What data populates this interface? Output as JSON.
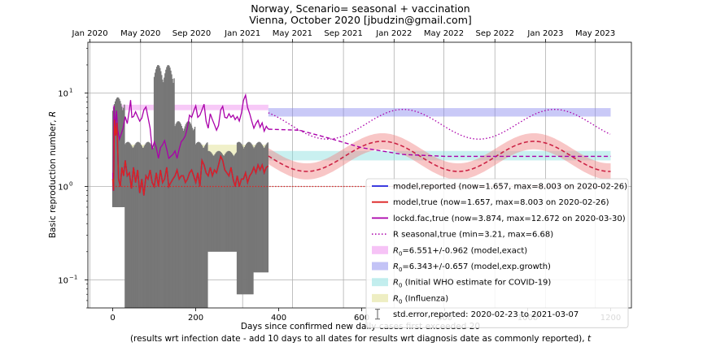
{
  "chart_data": {
    "type": "line",
    "title": "Norway, Scenario= seasonal + vaccination",
    "subtitle": "Vienna, October 2020 [jbudzin@gmail.com]",
    "xlabel_line1": "Days since confirmed new daily cases first exceeded 20",
    "xlabel_line2": "(results wrt infection date - add 10 days to all dates for results wrt diagnosis date as commonly reported),",
    "xlabel_var": "t",
    "ylabel": "Basic reproduction number,",
    "ylabel_var": "R",
    "x_scale": "linear",
    "y_scale": "log",
    "xlim": [
      -60,
      1250
    ],
    "ylim": [
      0.05,
      35
    ],
    "x_ticks": [
      0,
      200,
      400,
      600,
      800,
      1000,
      1200
    ],
    "y_ticks": [
      {
        "value": 0.1,
        "label": "10",
        "sup": "−1"
      },
      {
        "value": 1,
        "label": "10",
        "sup": "0"
      },
      {
        "value": 10,
        "label": "10",
        "sup": "1"
      }
    ],
    "top_axis_dates": [
      {
        "label": "Jan 2020",
        "day": -55
      },
      {
        "label": "May 2020",
        "day": 67
      },
      {
        "label": "Sep 2020",
        "day": 190
      },
      {
        "label": "Jan 2021",
        "day": 313
      },
      {
        "label": "May 2021",
        "day": 433
      },
      {
        "label": "Sep 2021",
        "day": 556
      },
      {
        "label": "Jan 2022",
        "day": 678
      },
      {
        "label": "May 2022",
        "day": 798
      },
      {
        "label": "Sep 2022",
        "day": 921
      },
      {
        "label": "Jan 2023",
        "day": 1043
      },
      {
        "label": "May 2023",
        "day": 1163
      }
    ],
    "grid": true,
    "legend_position": "lower-right",
    "bands": [
      {
        "name": "R0=6.551+/-0.962 (model,exact)",
        "x": [
          0,
          375
        ],
        "y": [
          6.551,
          7.5
        ],
        "color": "#ee88ee"
      },
      {
        "name": "R0=6.343+/-0.657 (model,exp.growth)",
        "x": [
          375,
          1200
        ],
        "y": [
          5.6,
          6.9
        ],
        "color": "#8888ee"
      },
      {
        "name": "R0 (Initial WHO estimate for COVID-19)",
        "x": [
          375,
          1200
        ],
        "y": [
          1.9,
          2.4
        ],
        "color": "#88dddd"
      },
      {
        "name": "R0 (Influenza)",
        "x": [
          0,
          375
        ],
        "y": [
          1.5,
          2.8
        ],
        "color": "#dddd88"
      }
    ],
    "seasonal_curve": {
      "name": "R seasonal,true (min=3.21, max=6.68)",
      "min": 3.21,
      "max": 6.68,
      "x_range": [
        375,
        1200
      ],
      "peak_day": 700,
      "period": 365,
      "color": "#aa00aa"
    },
    "scenario_curve": {
      "center": 2.1,
      "amplitude": 0.7,
      "period": 365,
      "peak_day": 1015,
      "x_range": [
        375,
        1200
      ],
      "start_value": 1.6,
      "color": "#cc2244"
    },
    "lockdown_trend": {
      "x": [
        375,
        450,
        520,
        600,
        700,
        800,
        1200
      ],
      "y": [
        4.1,
        4.0,
        3.3,
        2.6,
        2.2,
        2.1,
        2.1
      ],
      "color": "#aa00aa"
    },
    "reference_line": {
      "y": 1.0,
      "x": [
        0,
        1200
      ],
      "color": "#dd2222"
    },
    "series": [
      {
        "name": "model,reported (now=1.657, max=8.003 on 2020-02-26)",
        "color": "#2222dd",
        "style": "solid"
      },
      {
        "name": "model,true (now=1.657, max=8.003 on 2020-02-26)",
        "color": "#dd2222",
        "style": "solid"
      },
      {
        "name": "lockd.fac,true (now=3.874, max=12.672 on 2020-03-30)",
        "color": "#aa00aa",
        "style": "solid"
      },
      {
        "name": "R seasonal,true (min=3.21, max=6.68)",
        "color": "#aa00aa",
        "style": "dotted"
      }
    ],
    "lockdown_points": [
      [
        0,
        1.4
      ],
      [
        1,
        0.9
      ],
      [
        3,
        7.3
      ],
      [
        6,
        4.2
      ],
      [
        9,
        6.5
      ],
      [
        12,
        4.0
      ],
      [
        16,
        3.2
      ],
      [
        20,
        3.6
      ],
      [
        25,
        4.2
      ],
      [
        30,
        5.6
      ],
      [
        35,
        4.7
      ],
      [
        40,
        6.6
      ],
      [
        43,
        8.4
      ],
      [
        46,
        5.5
      ],
      [
        50,
        5.6
      ],
      [
        55,
        6.3
      ],
      [
        60,
        5.6
      ],
      [
        65,
        5.0
      ],
      [
        70,
        5.4
      ],
      [
        75,
        6.6
      ],
      [
        80,
        7.1
      ],
      [
        85,
        5.5
      ],
      [
        90,
        4.2
      ],
      [
        95,
        2.5
      ],
      [
        100,
        3.0
      ],
      [
        105,
        2.6
      ],
      [
        110,
        2.0
      ],
      [
        115,
        2.6
      ],
      [
        120,
        2.8
      ],
      [
        125,
        3.1
      ],
      [
        130,
        2.5
      ],
      [
        135,
        2.0
      ],
      [
        140,
        2.1
      ],
      [
        145,
        2.2
      ],
      [
        150,
        2.4
      ],
      [
        155,
        2.0
      ],
      [
        160,
        2.5
      ],
      [
        165,
        3.0
      ],
      [
        170,
        3.2
      ],
      [
        175,
        3.5
      ],
      [
        180,
        4.3
      ],
      [
        185,
        5.8
      ],
      [
        190,
        5.5
      ],
      [
        195,
        6.4
      ],
      [
        200,
        7.3
      ],
      [
        205,
        5.5
      ],
      [
        210,
        5.8
      ],
      [
        215,
        6.6
      ],
      [
        220,
        7.6
      ],
      [
        225,
        5.0
      ],
      [
        230,
        4.2
      ],
      [
        235,
        6.0
      ],
      [
        240,
        5.2
      ],
      [
        245,
        4.6
      ],
      [
        250,
        4.0
      ],
      [
        255,
        4.5
      ],
      [
        260,
        6.6
      ],
      [
        265,
        7.2
      ],
      [
        270,
        5.5
      ],
      [
        275,
        5.4
      ],
      [
        280,
        6.0
      ],
      [
        285,
        5.5
      ],
      [
        290,
        5.8
      ],
      [
        295,
        5.2
      ],
      [
        300,
        5.6
      ],
      [
        305,
        5.0
      ],
      [
        310,
        6.1
      ],
      [
        315,
        8.3
      ],
      [
        320,
        9.5
      ],
      [
        325,
        7.0
      ],
      [
        330,
        6.0
      ],
      [
        335,
        5.0
      ],
      [
        340,
        4.2
      ],
      [
        345,
        4.7
      ],
      [
        350,
        5.1
      ],
      [
        355,
        4.3
      ],
      [
        360,
        4.8
      ],
      [
        365,
        3.9
      ],
      [
        370,
        4.4
      ],
      [
        375,
        4.1
      ]
    ],
    "model_points": [
      [
        0,
        1.2
      ],
      [
        2,
        0.9
      ],
      [
        4,
        5.2
      ],
      [
        7,
        3.5
      ],
      [
        10,
        4.8
      ],
      [
        14,
        1.2
      ],
      [
        18,
        1.0
      ],
      [
        22,
        1.6
      ],
      [
        26,
        1.3
      ],
      [
        30,
        1.9
      ],
      [
        35,
        1.3
      ],
      [
        40,
        1.4
      ],
      [
        45,
        0.95
      ],
      [
        50,
        1.6
      ],
      [
        55,
        1.1
      ],
      [
        60,
        1.5
      ],
      [
        65,
        0.85
      ],
      [
        70,
        1.2
      ],
      [
        75,
        0.8
      ],
      [
        80,
        1.3
      ],
      [
        85,
        1.2
      ],
      [
        90,
        1.5
      ],
      [
        95,
        1.1
      ],
      [
        100,
        1.0
      ],
      [
        105,
        1.4
      ],
      [
        110,
        1.0
      ],
      [
        115,
        1.5
      ],
      [
        120,
        1.1
      ],
      [
        125,
        1.2
      ],
      [
        130,
        1.6
      ],
      [
        135,
        1.0
      ],
      [
        140,
        1.1
      ],
      [
        145,
        1.2
      ],
      [
        150,
        1.3
      ],
      [
        155,
        1.5
      ],
      [
        160,
        1.2
      ],
      [
        165,
        1.3
      ],
      [
        170,
        1.3
      ],
      [
        175,
        1.1
      ],
      [
        180,
        1.2
      ],
      [
        185,
        1.4
      ],
      [
        190,
        1.5
      ],
      [
        195,
        1.3
      ],
      [
        200,
        1.1
      ],
      [
        205,
        1.4
      ],
      [
        210,
        1.0
      ],
      [
        215,
        1.9
      ],
      [
        220,
        1.7
      ],
      [
        225,
        1.4
      ],
      [
        230,
        1.3
      ],
      [
        235,
        1.6
      ],
      [
        240,
        1.3
      ],
      [
        245,
        1.5
      ],
      [
        250,
        1.4
      ],
      [
        255,
        1.7
      ],
      [
        260,
        2.1
      ],
      [
        265,
        1.9
      ],
      [
        270,
        1.5
      ],
      [
        275,
        1.4
      ],
      [
        280,
        1.3
      ],
      [
        285,
        1.6
      ],
      [
        290,
        1.2
      ],
      [
        295,
        1.0
      ],
      [
        300,
        1.3
      ],
      [
        305,
        1.0
      ],
      [
        310,
        1.2
      ],
      [
        315,
        1.2
      ],
      [
        320,
        1.4
      ],
      [
        325,
        1.1
      ],
      [
        330,
        1.3
      ],
      [
        335,
        1.4
      ],
      [
        340,
        1.6
      ],
      [
        345,
        1.4
      ],
      [
        350,
        1.7
      ],
      [
        355,
        1.5
      ],
      [
        360,
        1.7
      ],
      [
        365,
        1.4
      ],
      [
        370,
        1.6
      ],
      [
        375,
        1.657
      ]
    ],
    "error_bars": {
      "name": "std.error,reported: 2020-02-23 to 2021-03-07",
      "x_range": [
        0,
        375
      ],
      "segments": [
        {
          "x": [
            0,
            30
          ],
          "low": 0.6,
          "high": 9.0
        },
        {
          "x": [
            30,
            100
          ],
          "low": 0.03,
          "high": 3.0
        },
        {
          "x": [
            100,
            150
          ],
          "low": 0.03,
          "high": 20.0
        },
        {
          "x": [
            150,
            200
          ],
          "low": 0.03,
          "high": 5.0
        },
        {
          "x": [
            200,
            230
          ],
          "low": 0.03,
          "high": 3.0
        },
        {
          "x": [
            230,
            300
          ],
          "low": 0.2,
          "high": 2.4
        },
        {
          "x": [
            300,
            340
          ],
          "low": 0.07,
          "high": 3.0
        },
        {
          "x": [
            340,
            375
          ],
          "low": 0.12,
          "high": 3.0
        }
      ],
      "color": "#777777"
    },
    "legend": [
      {
        "key": "reported",
        "label": "model,reported (now=1.657, max=8.003 on 2020-02-26)",
        "kind": "line",
        "color": "#2222dd"
      },
      {
        "key": "true",
        "label": "model,true (now=1.657, max=8.003 on 2020-02-26)",
        "kind": "line",
        "color": "#dd2222"
      },
      {
        "key": "lockd",
        "label": "lockd.fac,true (now=3.874, max=12.672 on 2020-03-30)",
        "kind": "line",
        "color": "#aa00aa"
      },
      {
        "key": "seasonal",
        "label": "R seasonal,true (min=3.21, max=6.68)",
        "kind": "dotted",
        "color": "#aa00aa"
      },
      {
        "key": "exact",
        "label": "=6.551+/-0.962 (model,exact)",
        "prefix": "R",
        "prefix_sub": "0",
        "kind": "patch",
        "color": "#ee88ee"
      },
      {
        "key": "expgrowth",
        "label": "=6.343+/-0.657 (model,exp.growth)",
        "prefix": "R",
        "prefix_sub": "0",
        "kind": "patch",
        "color": "#8888ee"
      },
      {
        "key": "who",
        "label": " (Initial WHO estimate for COVID-19)",
        "prefix": "R",
        "prefix_sub": "0",
        "kind": "patch",
        "color": "#88dddd"
      },
      {
        "key": "influenza",
        "label": " (Influenza)",
        "prefix": "R",
        "prefix_sub": "0",
        "kind": "patch",
        "color": "#dddd88"
      },
      {
        "key": "stderr",
        "label": "std.error,reported: 2020-02-23 to 2021-03-07",
        "kind": "errbar",
        "color": "#777777"
      }
    ]
  }
}
